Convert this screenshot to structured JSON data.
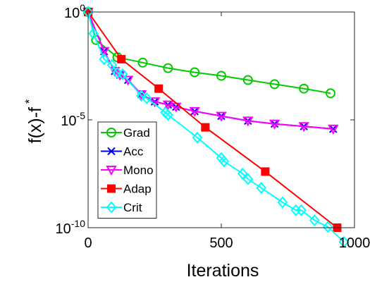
{
  "chart_data": {
    "type": "line",
    "title": "",
    "xlabel": "Iterations",
    "ylabel": "f(x)-f *",
    "y_scale": "log",
    "xlim": [
      0,
      1000
    ],
    "ylim_exponent": [
      -10,
      0
    ],
    "x_ticks": [
      {
        "value": 0,
        "label": "0"
      },
      {
        "value": 500,
        "label": "500"
      },
      {
        "value": 1000,
        "label": "1000"
      }
    ],
    "y_ticks": [
      {
        "exp": 0,
        "base": "10",
        "sup": "0"
      },
      {
        "exp": -5,
        "base": "10",
        "sup": "-5"
      },
      {
        "exp": -10,
        "base": "10",
        "sup": "-10"
      }
    ],
    "grid": false,
    "legend_position": "bottom-left",
    "series": [
      {
        "name": "Grad",
        "color": "#00cc00",
        "marker": "circle",
        "x": [
          0,
          30,
          110,
          205,
          300,
          400,
          500,
          600,
          700,
          810,
          910
        ],
        "y": [
          1.0,
          0.05,
          0.008,
          0.0045,
          0.0025,
          0.0016,
          0.0011,
          0.0007,
          0.00045,
          0.00028,
          0.00017
        ]
      },
      {
        "name": "Acc",
        "color": "#0000ff",
        "marker": "x",
        "x": [
          0,
          60,
          100,
          120,
          150,
          200,
          250,
          300,
          330,
          400,
          500,
          600,
          700,
          810,
          920
        ],
        "y": [
          1.0,
          0.015,
          0.0018,
          0.0012,
          0.0007,
          0.00015,
          7e-05,
          5e-05,
          4e-05,
          2.5e-05,
          1.5e-05,
          9e-06,
          6.5e-06,
          5e-06,
          3.8e-06
        ]
      },
      {
        "name": "Mono",
        "color": "#ff00ff",
        "marker": "triangle-down",
        "x": [
          0,
          60,
          100,
          120,
          150,
          200,
          250,
          300,
          330,
          400,
          500,
          600,
          700,
          810,
          920
        ],
        "y": [
          1.0,
          0.015,
          0.0018,
          0.0012,
          0.0007,
          0.00015,
          7e-05,
          5e-05,
          4e-05,
          2.5e-05,
          1.5e-05,
          9e-06,
          6.5e-06,
          5e-06,
          3.8e-06
        ]
      },
      {
        "name": "Adap",
        "color": "#ff0000",
        "marker": "square",
        "x": [
          0,
          125,
          265,
          440,
          665,
          935
        ],
        "y": [
          1.0,
          0.0065,
          0.00028,
          4.5e-06,
          4e-08,
          1e-10
        ]
      },
      {
        "name": "Crit",
        "color": "#00ffff",
        "marker": "diamond",
        "x": [
          0,
          20,
          60,
          90,
          110,
          130,
          200,
          220,
          290,
          300,
          410,
          500,
          510,
          580,
          600,
          650,
          730,
          780,
          800,
          850,
          900,
          960
        ],
        "y": [
          1.0,
          0.1,
          0.0065,
          0.0035,
          0.0015,
          0.0013,
          0.00013,
          0.0001,
          2.2e-05,
          1.7e-05,
          1.5e-06,
          1.7e-07,
          1.2e-07,
          3.2e-08,
          1.8e-08,
          7e-09,
          1.5e-09,
          6.5e-10,
          6.5e-10,
          2.2e-10,
          1.1e-10,
          2.2e-11
        ]
      }
    ]
  }
}
